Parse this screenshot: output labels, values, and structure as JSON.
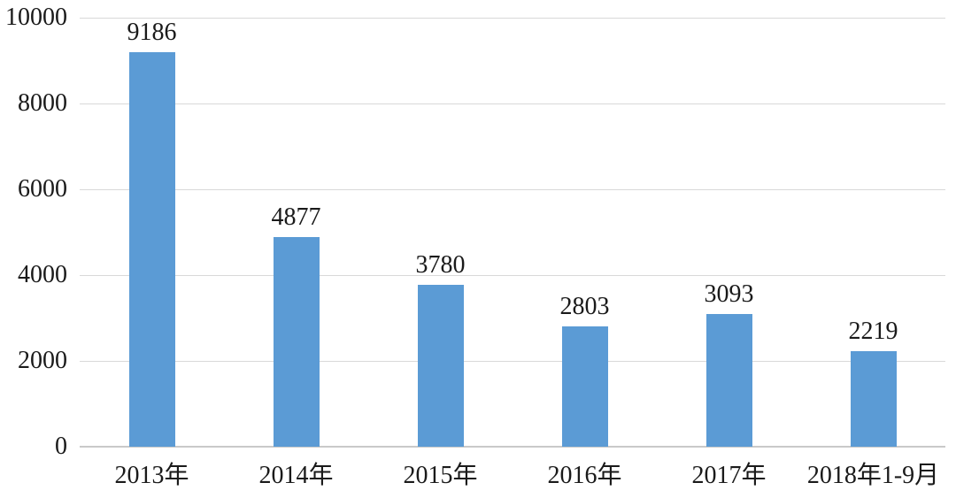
{
  "chart_data": {
    "type": "bar",
    "categories": [
      "2013年",
      "2014年",
      "2015年",
      "2016年",
      "2017年",
      "2018年1-9月"
    ],
    "values": [
      9186,
      4877,
      3780,
      2803,
      3093,
      2219
    ],
    "title": "",
    "xlabel": "",
    "ylabel": "",
    "ylim": [
      0,
      10000
    ],
    "yticks": [
      0,
      2000,
      4000,
      6000,
      8000,
      10000
    ],
    "grid": true,
    "legend_position": "none",
    "data_labels": true,
    "bar_color": "#5B9BD5",
    "gridline_color": "#D9D9D9",
    "axis_line_color": "#C9C9C9",
    "text_color": "#1A1A1A"
  }
}
